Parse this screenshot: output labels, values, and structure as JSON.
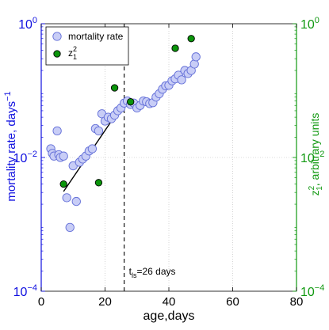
{
  "chart_data": {
    "type": "scatter",
    "xlabel": "age,days",
    "ylabel_left": "mortality rate, days",
    "ylabel_left_superscript": "−1",
    "ylabel_right_main": "z",
    "ylabel_right_sup": "2",
    "ylabel_right_sub": "1",
    "ylabel_right_tail": ", arbitrary units",
    "xlim": [
      0,
      80
    ],
    "ylim": [
      0.0001,
      1
    ],
    "yscale": "log",
    "grid": true,
    "legend_position": "top-left",
    "x_ticks": [
      "0",
      "20",
      "40",
      "60",
      "80"
    ],
    "y_ticks_left": [
      {
        "base": "10",
        "exp": "0"
      },
      {
        "base": "10",
        "exp": "−2"
      },
      {
        "base": "10",
        "exp": "−4"
      }
    ],
    "y_ticks_right": [
      {
        "base": "10",
        "exp": "0"
      },
      {
        "base": "10",
        "exp": "−2"
      },
      {
        "base": "10",
        "exp": "−4"
      }
    ],
    "annotation": {
      "text_main": "t",
      "text_sub": "ls",
      "text_tail": "=26 days",
      "x": 26
    },
    "vline_x": 26,
    "colors": {
      "left_axis": "#1010e0",
      "right_axis": "#119911",
      "mortality_face": "#c8cdf6",
      "mortality_edge": "#6470d8",
      "z_face": "#0b950b",
      "z_edge": "#000000",
      "fit_line": "#000000"
    },
    "series": [
      {
        "name": "mortality rate",
        "marker": "open-circle",
        "points": [
          [
            3,
            0.0135
          ],
          [
            3.5,
            0.0115
          ],
          [
            4,
            0.0105
          ],
          [
            5,
            0.025
          ],
          [
            5.5,
            0.011
          ],
          [
            6,
            0.01
          ],
          [
            7,
            0.0105
          ],
          [
            8,
            0.0025
          ],
          [
            9,
            0.0009
          ],
          [
            10,
            0.0075
          ],
          [
            11,
            0.0022
          ],
          [
            12,
            0.0085
          ],
          [
            13,
            0.0095
          ],
          [
            14,
            0.0105
          ],
          [
            15,
            0.0125
          ],
          [
            16,
            0.0135
          ],
          [
            17,
            0.027
          ],
          [
            18,
            0.025
          ],
          [
            19,
            0.045
          ],
          [
            20,
            0.035
          ],
          [
            21,
            0.04
          ],
          [
            22,
            0.038
          ],
          [
            23,
            0.043
          ],
          [
            24,
            0.05
          ],
          [
            25,
            0.055
          ],
          [
            26,
            0.065
          ],
          [
            27,
            0.07
          ],
          [
            28,
            0.062
          ],
          [
            29,
            0.065
          ],
          [
            30,
            0.055
          ],
          [
            31,
            0.06
          ],
          [
            32,
            0.07
          ],
          [
            33,
            0.068
          ],
          [
            34,
            0.064
          ],
          [
            35,
            0.066
          ],
          [
            36,
            0.08
          ],
          [
            37,
            0.09
          ],
          [
            38,
            0.105
          ],
          [
            39,
            0.118
          ],
          [
            40,
            0.12
          ],
          [
            41,
            0.14
          ],
          [
            42,
            0.15
          ],
          [
            43,
            0.17
          ],
          [
            44,
            0.145
          ],
          [
            45,
            0.2
          ],
          [
            46,
            0.18
          ],
          [
            47,
            0.2
          ],
          [
            48,
            0.25
          ],
          [
            48.5,
            0.32
          ]
        ]
      },
      {
        "name_main": "z",
        "name_sup": "2",
        "name_sub": "1",
        "marker": "filled-circle",
        "points": [
          [
            7,
            0.004
          ],
          [
            18,
            0.0042
          ],
          [
            23,
            0.11
          ],
          [
            28,
            0.068
          ],
          [
            42,
            0.43
          ],
          [
            47,
            0.6
          ]
        ]
      }
    ],
    "fit_line": {
      "x": [
        7,
        22
      ],
      "y": [
        0.0031,
        0.035
      ]
    }
  }
}
